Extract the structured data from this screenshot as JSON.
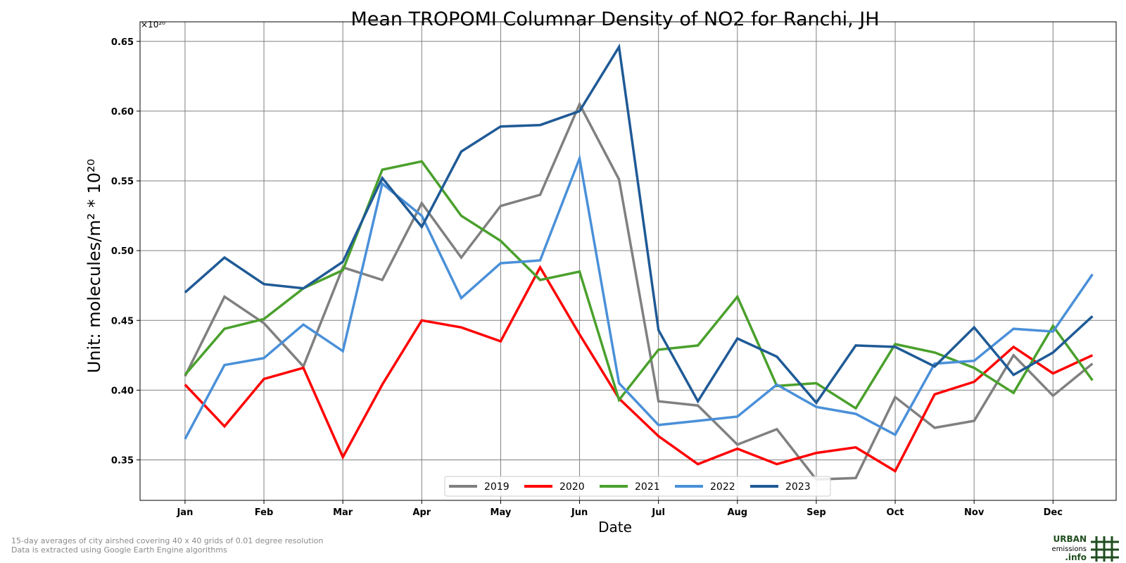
{
  "footnotes": [
    "15-day averages of city airshed covering 40 x 40 grids of 0.01 degree resolution",
    "Data is extracted using Google Earth Engine algorithms"
  ],
  "logo": {
    "line1": "URBAN",
    "line2": "emissions",
    "line3": ".info",
    "color": "#1f4d1f"
  },
  "chart_data": {
    "type": "line",
    "title": "Mean TROPOMI Columnar Density of NO2 for Ranchi, JH",
    "xlabel": "Date",
    "ylabel": "Unit: molecules/m² * 10²⁰",
    "y_multiplier": "×10²⁰",
    "x_tick_labels": [
      "Jan",
      "Feb",
      "Mar",
      "Apr",
      "May",
      "Jun",
      "Jul",
      "Aug",
      "Sep",
      "Oct",
      "Nov",
      "Dec"
    ],
    "x": [
      1,
      1.5,
      2,
      2.5,
      3,
      3.5,
      4,
      4.5,
      5,
      5.5,
      6,
      6.5,
      7,
      7.5,
      8,
      8.5,
      9,
      9.5,
      10,
      10.5,
      11,
      11.5,
      12,
      12.5
    ],
    "xlim": [
      0.43,
      12.8
    ],
    "y_ticks": [
      0.35,
      0.4,
      0.45,
      0.5,
      0.55,
      0.6,
      0.65
    ],
    "ylim": [
      0.321,
      0.664
    ],
    "grid": true,
    "legend_position": "bottom-center",
    "series": [
      {
        "name": "2019",
        "color": "#808080",
        "values": [
          0.41,
          0.467,
          0.448,
          0.417,
          0.488,
          0.479,
          0.534,
          0.495,
          0.532,
          0.54,
          0.605,
          0.551,
          0.392,
          0.389,
          0.361,
          0.372,
          0.336,
          0.337,
          0.395,
          0.373,
          0.378,
          0.425,
          0.396,
          0.419
        ]
      },
      {
        "name": "2020",
        "color": "#ff0000",
        "values": [
          0.404,
          0.374,
          0.408,
          0.416,
          0.352,
          0.404,
          0.45,
          0.445,
          0.435,
          0.488,
          0.44,
          0.394,
          0.367,
          0.347,
          0.358,
          0.347,
          0.355,
          0.359,
          0.342,
          0.397,
          0.406,
          0.431,
          0.412,
          0.425
        ]
      },
      {
        "name": "2021",
        "color": "#4aa02c",
        "values": [
          0.411,
          0.444,
          0.451,
          0.473,
          0.486,
          0.558,
          0.564,
          0.525,
          0.507,
          0.479,
          0.485,
          0.393,
          0.429,
          0.432,
          0.467,
          0.403,
          0.405,
          0.387,
          0.433,
          0.427,
          0.416,
          0.398,
          0.446,
          0.407
        ]
      },
      {
        "name": "2022",
        "color": "#4a90d9",
        "values": [
          0.365,
          0.418,
          0.423,
          0.447,
          0.428,
          0.548,
          0.525,
          0.466,
          0.491,
          0.493,
          0.566,
          0.405,
          0.375,
          0.378,
          0.381,
          0.404,
          0.388,
          0.383,
          0.368,
          0.419,
          0.421,
          0.444,
          0.442,
          0.483
        ]
      },
      {
        "name": "2023",
        "color": "#1f5a96",
        "values": [
          0.47,
          0.495,
          0.476,
          0.473,
          0.492,
          0.552,
          0.517,
          0.571,
          0.589,
          0.59,
          0.6,
          0.646,
          0.443,
          0.392,
          0.437,
          0.424,
          0.391,
          0.432,
          0.431,
          0.417,
          0.445,
          0.411,
          0.427,
          0.453
        ]
      }
    ]
  }
}
